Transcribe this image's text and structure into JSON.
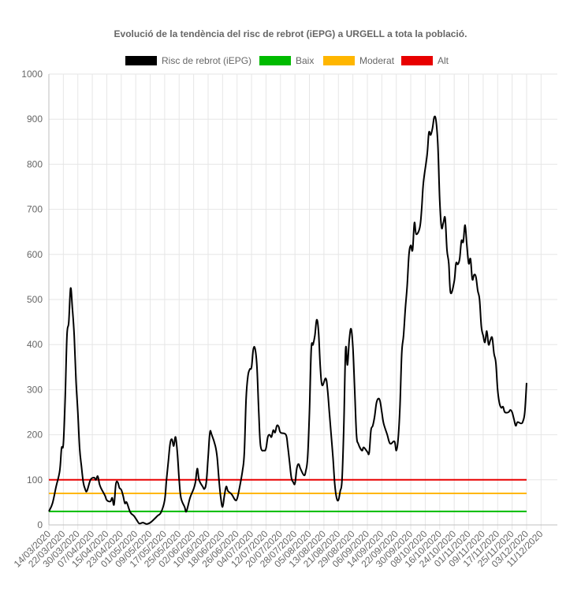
{
  "chart_data": {
    "type": "line",
    "title": "Evolució de la tendència del risc de rebrot (iEPG) a URGELL a tota la població.",
    "xlabel": "",
    "ylabel": "",
    "ylim": [
      0,
      1000
    ],
    "y_ticks": [
      0,
      100,
      200,
      300,
      400,
      500,
      600,
      700,
      800,
      900,
      1000
    ],
    "grid": true,
    "legend_position": "top",
    "x_tick_labels": [
      "14/03/2020",
      "22/03/2020",
      "30/03/2020",
      "07/04/2020",
      "15/04/2020",
      "23/04/2020",
      "01/05/2020",
      "09/05/2020",
      "17/05/2020",
      "25/05/2020",
      "02/06/2020",
      "10/06/2020",
      "18/06/2020",
      "26/06/2020",
      "04/07/2020",
      "12/07/2020",
      "20/07/2020",
      "28/07/2020",
      "05/08/2020",
      "13/08/2020",
      "21/08/2020",
      "29/08/2020",
      "06/09/2020",
      "14/09/2020",
      "22/09/2020",
      "30/09/2020",
      "08/10/2020",
      "16/10/2020",
      "24/10/2020",
      "01/11/2020",
      "09/11/2020",
      "17/11/2020",
      "25/11/2020",
      "03/12/2020",
      "11/12/2020"
    ],
    "x_start": "14/03/2020",
    "x_end": "20/12/2020",
    "series": [
      {
        "name": "Risc de rebrot (iEPG)",
        "color": "#000000",
        "points": [
          [
            "14/03/2020",
            30
          ],
          [
            "16/03/2020",
            48
          ],
          [
            "18/03/2020",
            85
          ],
          [
            "20/03/2020",
            120
          ],
          [
            "21/03/2020",
            170
          ],
          [
            "22/03/2020",
            180
          ],
          [
            "23/03/2020",
            280
          ],
          [
            "24/03/2020",
            420
          ],
          [
            "25/03/2020",
            450
          ],
          [
            "26/03/2020",
            525
          ],
          [
            "27/03/2020",
            480
          ],
          [
            "28/03/2020",
            420
          ],
          [
            "29/03/2020",
            320
          ],
          [
            "30/03/2020",
            250
          ],
          [
            "31/03/2020",
            170
          ],
          [
            "01/04/2020",
            130
          ],
          [
            "02/04/2020",
            95
          ],
          [
            "03/04/2020",
            80
          ],
          [
            "04/04/2020",
            75
          ],
          [
            "06/04/2020",
            100
          ],
          [
            "08/04/2020",
            105
          ],
          [
            "09/04/2020",
            100
          ],
          [
            "10/04/2020",
            108
          ],
          [
            "11/04/2020",
            90
          ],
          [
            "12/04/2020",
            80
          ],
          [
            "14/04/2020",
            65
          ],
          [
            "15/04/2020",
            55
          ],
          [
            "17/04/2020",
            52
          ],
          [
            "18/04/2020",
            60
          ],
          [
            "19/04/2020",
            45
          ],
          [
            "20/04/2020",
            90
          ],
          [
            "21/04/2020",
            95
          ],
          [
            "22/04/2020",
            82
          ],
          [
            "23/04/2020",
            78
          ],
          [
            "24/04/2020",
            65
          ],
          [
            "25/04/2020",
            48
          ],
          [
            "26/04/2020",
            50
          ],
          [
            "28/04/2020",
            28
          ],
          [
            "30/04/2020",
            20
          ],
          [
            "02/05/2020",
            8
          ],
          [
            "03/05/2020",
            3
          ],
          [
            "05/05/2020",
            5
          ],
          [
            "07/05/2020",
            2
          ],
          [
            "09/05/2020",
            5
          ],
          [
            "11/05/2020",
            12
          ],
          [
            "13/05/2020",
            20
          ],
          [
            "15/05/2020",
            28
          ],
          [
            "17/05/2020",
            55
          ],
          [
            "18/05/2020",
            100
          ],
          [
            "19/05/2020",
            140
          ],
          [
            "20/05/2020",
            180
          ],
          [
            "21/05/2020",
            190
          ],
          [
            "22/05/2020",
            175
          ],
          [
            "23/05/2020",
            195
          ],
          [
            "24/05/2020",
            160
          ],
          [
            "25/05/2020",
            100
          ],
          [
            "26/05/2020",
            60
          ],
          [
            "28/05/2020",
            40
          ],
          [
            "29/05/2020",
            30
          ],
          [
            "31/05/2020",
            60
          ],
          [
            "02/06/2020",
            80
          ],
          [
            "03/06/2020",
            95
          ],
          [
            "04/06/2020",
            125
          ],
          [
            "05/06/2020",
            100
          ],
          [
            "07/06/2020",
            85
          ],
          [
            "08/06/2020",
            80
          ],
          [
            "09/06/2020",
            95
          ],
          [
            "10/06/2020",
            150
          ],
          [
            "11/06/2020",
            205
          ],
          [
            "12/06/2020",
            200
          ],
          [
            "14/06/2020",
            175
          ],
          [
            "15/06/2020",
            150
          ],
          [
            "16/06/2020",
            100
          ],
          [
            "17/06/2020",
            60
          ],
          [
            "18/06/2020",
            40
          ],
          [
            "19/06/2020",
            65
          ],
          [
            "20/06/2020",
            85
          ],
          [
            "21/06/2020",
            75
          ],
          [
            "23/06/2020",
            68
          ],
          [
            "25/06/2020",
            55
          ],
          [
            "26/06/2020",
            58
          ],
          [
            "27/06/2020",
            75
          ],
          [
            "29/06/2020",
            120
          ],
          [
            "30/06/2020",
            160
          ],
          [
            "01/07/2020",
            280
          ],
          [
            "02/07/2020",
            330
          ],
          [
            "03/07/2020",
            345
          ],
          [
            "04/07/2020",
            350
          ],
          [
            "05/07/2020",
            390
          ],
          [
            "06/07/2020",
            390
          ],
          [
            "07/07/2020",
            350
          ],
          [
            "08/07/2020",
            250
          ],
          [
            "09/07/2020",
            175
          ],
          [
            "11/07/2020",
            165
          ],
          [
            "12/07/2020",
            170
          ],
          [
            "13/07/2020",
            195
          ],
          [
            "14/07/2020",
            200
          ],
          [
            "15/07/2020",
            195
          ],
          [
            "16/07/2020",
            210
          ],
          [
            "17/07/2020",
            205
          ],
          [
            "18/07/2020",
            220
          ],
          [
            "19/07/2020",
            218
          ],
          [
            "20/07/2020",
            205
          ],
          [
            "23/07/2020",
            200
          ],
          [
            "24/07/2020",
            175
          ],
          [
            "25/07/2020",
            140
          ],
          [
            "26/07/2020",
            105
          ],
          [
            "27/07/2020",
            95
          ],
          [
            "28/07/2020",
            92
          ],
          [
            "29/07/2020",
            125
          ],
          [
            "30/07/2020",
            135
          ],
          [
            "31/07/2020",
            125
          ],
          [
            "02/08/2020",
            110
          ],
          [
            "03/08/2020",
            120
          ],
          [
            "04/08/2020",
            150
          ],
          [
            "05/08/2020",
            250
          ],
          [
            "06/08/2020",
            390
          ],
          [
            "07/08/2020",
            400
          ],
          [
            "08/08/2020",
            420
          ],
          [
            "09/08/2020",
            455
          ],
          [
            "10/08/2020",
            430
          ],
          [
            "11/08/2020",
            350
          ],
          [
            "12/08/2020",
            310
          ],
          [
            "14/08/2020",
            325
          ],
          [
            "15/08/2020",
            300
          ],
          [
            "16/08/2020",
            250
          ],
          [
            "17/08/2020",
            200
          ],
          [
            "18/08/2020",
            150
          ],
          [
            "19/08/2020",
            90
          ],
          [
            "20/08/2020",
            60
          ],
          [
            "21/08/2020",
            55
          ],
          [
            "22/08/2020",
            75
          ],
          [
            "23/08/2020",
            100
          ],
          [
            "24/08/2020",
            220
          ],
          [
            "25/08/2020",
            390
          ],
          [
            "26/08/2020",
            355
          ],
          [
            "27/08/2020",
            410
          ],
          [
            "28/08/2020",
            435
          ],
          [
            "29/08/2020",
            395
          ],
          [
            "30/08/2020",
            300
          ],
          [
            "31/08/2020",
            200
          ],
          [
            "01/09/2020",
            180
          ],
          [
            "03/09/2020",
            165
          ],
          [
            "04/09/2020",
            172
          ],
          [
            "06/09/2020",
            162
          ],
          [
            "07/09/2020",
            160
          ],
          [
            "08/09/2020",
            210
          ],
          [
            "09/09/2020",
            220
          ],
          [
            "10/09/2020",
            240
          ],
          [
            "11/09/2020",
            270
          ],
          [
            "12/09/2020",
            280
          ],
          [
            "13/09/2020",
            275
          ],
          [
            "14/09/2020",
            250
          ],
          [
            "15/09/2020",
            225
          ],
          [
            "17/09/2020",
            200
          ],
          [
            "18/09/2020",
            185
          ],
          [
            "19/09/2020",
            180
          ],
          [
            "21/09/2020",
            185
          ],
          [
            "22/09/2020",
            165
          ],
          [
            "23/09/2020",
            190
          ],
          [
            "24/09/2020",
            260
          ],
          [
            "25/09/2020",
            380
          ],
          [
            "26/09/2020",
            420
          ],
          [
            "27/09/2020",
            480
          ],
          [
            "28/09/2020",
            530
          ],
          [
            "29/09/2020",
            600
          ],
          [
            "30/09/2020",
            620
          ],
          [
            "01/10/2020",
            610
          ],
          [
            "02/10/2020",
            670
          ],
          [
            "03/10/2020",
            645
          ],
          [
            "05/10/2020",
            660
          ],
          [
            "06/10/2020",
            700
          ],
          [
            "07/10/2020",
            760
          ],
          [
            "09/10/2020",
            820
          ],
          [
            "10/10/2020",
            870
          ],
          [
            "11/10/2020",
            865
          ],
          [
            "12/10/2020",
            880
          ],
          [
            "13/10/2020",
            905
          ],
          [
            "14/10/2020",
            895
          ],
          [
            "15/10/2020",
            840
          ],
          [
            "16/10/2020",
            720
          ],
          [
            "17/10/2020",
            660
          ],
          [
            "18/10/2020",
            670
          ],
          [
            "19/10/2020",
            680
          ],
          [
            "20/10/2020",
            610
          ],
          [
            "21/10/2020",
            580
          ],
          [
            "22/10/2020",
            515
          ],
          [
            "24/10/2020",
            540
          ],
          [
            "25/10/2020",
            580
          ],
          [
            "26/10/2020",
            578
          ],
          [
            "27/10/2020",
            590
          ],
          [
            "28/10/2020",
            630
          ],
          [
            "29/10/2020",
            628
          ],
          [
            "30/10/2020",
            665
          ],
          [
            "31/10/2020",
            620
          ],
          [
            "01/11/2020",
            580
          ],
          [
            "02/11/2020",
            590
          ],
          [
            "03/11/2020",
            545
          ],
          [
            "04/11/2020",
            555
          ],
          [
            "05/11/2020",
            550
          ],
          [
            "06/11/2020",
            520
          ],
          [
            "07/11/2020",
            500
          ],
          [
            "08/11/2020",
            440
          ],
          [
            "09/11/2020",
            420
          ],
          [
            "10/11/2020",
            405
          ],
          [
            "11/11/2020",
            430
          ],
          [
            "12/11/2020",
            400
          ],
          [
            "13/11/2020",
            410
          ],
          [
            "14/11/2020",
            415
          ],
          [
            "15/11/2020",
            380
          ],
          [
            "16/11/2020",
            360
          ],
          [
            "17/11/2020",
            300
          ],
          [
            "18/11/2020",
            270
          ],
          [
            "19/11/2020",
            260
          ],
          [
            "20/11/2020",
            262
          ],
          [
            "21/11/2020",
            250
          ],
          [
            "23/11/2020",
            250
          ],
          [
            "24/11/2020",
            255
          ],
          [
            "25/11/2020",
            250
          ],
          [
            "26/11/2020",
            235
          ],
          [
            "27/11/2020",
            220
          ],
          [
            "28/11/2020",
            228
          ],
          [
            "30/11/2020",
            225
          ],
          [
            "01/12/2020",
            230
          ],
          [
            "02/12/2020",
            250
          ],
          [
            "03/12/2020",
            315
          ]
        ]
      },
      {
        "name": "Baix",
        "color": "#00bb00",
        "points": [
          [
            "14/03/2020",
            30
          ],
          [
            "03/12/2020",
            30
          ]
        ]
      },
      {
        "name": "Moderat",
        "color": "#ffb600",
        "points": [
          [
            "14/03/2020",
            70
          ],
          [
            "03/12/2020",
            70
          ]
        ]
      },
      {
        "name": "Alt",
        "color": "#e80000",
        "points": [
          [
            "14/03/2020",
            100
          ],
          [
            "03/12/2020",
            100
          ]
        ]
      }
    ]
  }
}
